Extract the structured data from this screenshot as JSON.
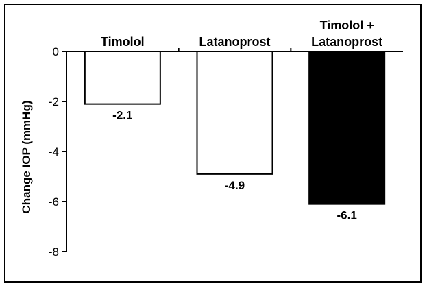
{
  "chart_data": {
    "type": "bar",
    "title": "",
    "xlabel": "",
    "ylabel": "Change IOP (mmHg)",
    "ylim": [
      -8,
      0
    ],
    "yticks": [
      0,
      -2,
      -4,
      -6,
      -8
    ],
    "grid": false,
    "legend": "none",
    "categories": [
      {
        "lines": [
          "Timolol"
        ]
      },
      {
        "lines": [
          "Latanoprost"
        ]
      },
      {
        "lines": [
          "Timolol +",
          "Latanoprost"
        ]
      }
    ],
    "values": [
      -2.1,
      -4.9,
      -6.1
    ],
    "data_labels": [
      "-2.1",
      "-4.9",
      "-6.1"
    ],
    "bar_fills": [
      "#ffffff",
      "#ffffff",
      "#000000"
    ],
    "bar_stroke": "#000000"
  }
}
